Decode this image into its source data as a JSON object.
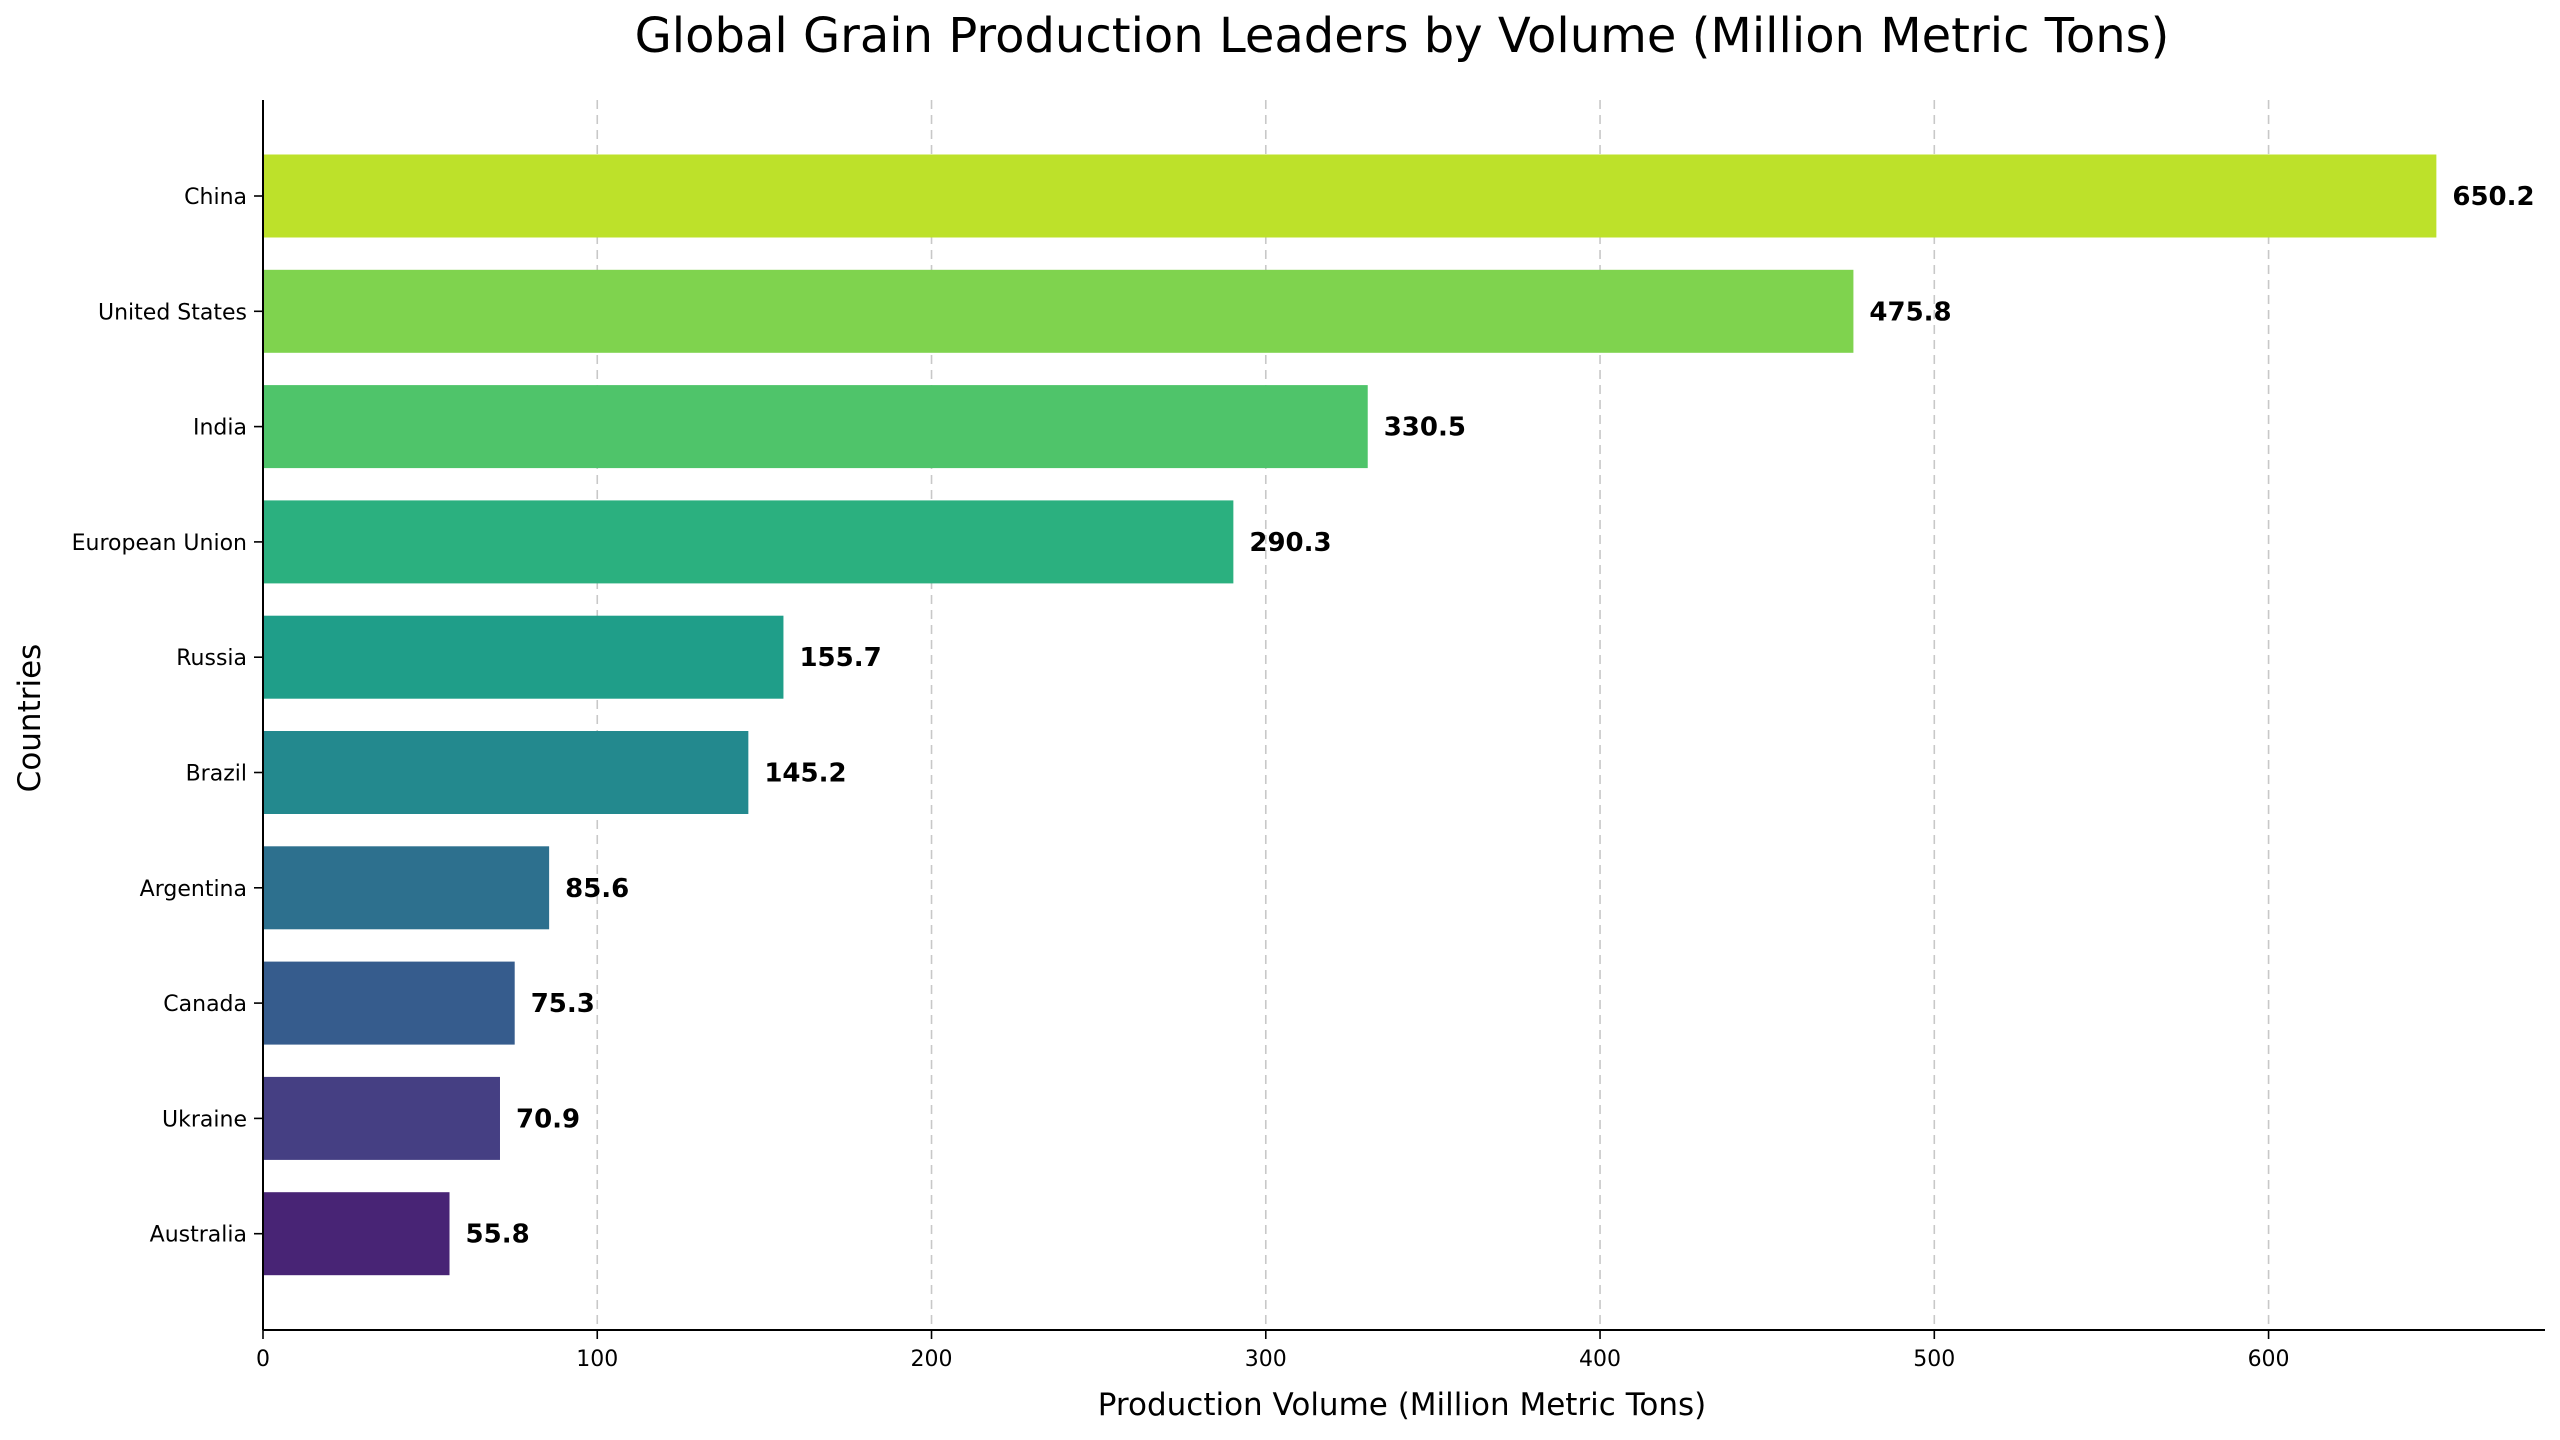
{
  "chart_data": {
    "type": "bar",
    "orientation": "horizontal",
    "title": "Global Grain Production Leaders by Volume (Million Metric Tons)",
    "xlabel": "Production Volume (Million Metric Tons)",
    "ylabel": "Countries",
    "xlim": [
      0,
      682.7
    ],
    "xticks": [
      "0",
      "100",
      "200",
      "300",
      "400",
      "500",
      "600"
    ],
    "grid": "x-dashed",
    "categories": [
      "China",
      "United States",
      "India",
      "European Union",
      "Russia",
      "Brazil",
      "Argentina",
      "Canada",
      "Ukraine",
      "Australia"
    ],
    "values": [
      650.2,
      475.8,
      330.5,
      290.3,
      155.7,
      145.2,
      85.6,
      75.3,
      70.9,
      55.8
    ],
    "value_labels": [
      "650.2",
      "475.8",
      "330.5",
      "290.3",
      "155.7",
      "145.2",
      "85.6",
      "75.3",
      "70.9",
      "55.8"
    ],
    "colors": [
      "#bde12a",
      "#7fd34e",
      "#4fc46a",
      "#2bb07f",
      "#1f9e89",
      "#23898e",
      "#2d708e",
      "#365c8d",
      "#453f83",
      "#482475"
    ]
  }
}
